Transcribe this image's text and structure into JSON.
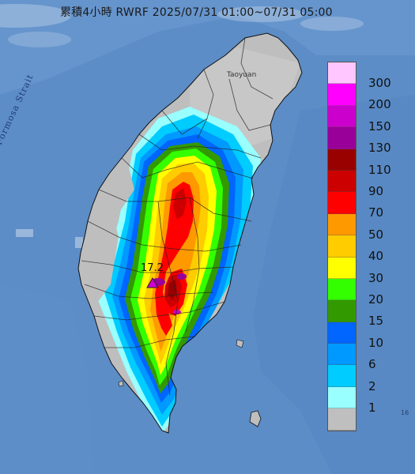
{
  "title": "累積4小時 RWRF 2025/07/31 01:00~07/31 05:00",
  "labels": {
    "strait": "Formosa Strait",
    "city": "Taoyuan",
    "station": "17.2",
    "corner_fragment": "16"
  },
  "legend": [
    {
      "label": "300",
      "color": "#ffc6ff"
    },
    {
      "label": "200",
      "color": "#ff00ff"
    },
    {
      "label": "150",
      "color": "#cc00cc"
    },
    {
      "label": "130",
      "color": "#990099"
    },
    {
      "label": "110",
      "color": "#990000"
    },
    {
      "label": "90",
      "color": "#cc0000"
    },
    {
      "label": "70",
      "color": "#ff0000"
    },
    {
      "label": "50",
      "color": "#ff9900"
    },
    {
      "label": "40",
      "color": "#ffcc00"
    },
    {
      "label": "30",
      "color": "#ffff00"
    },
    {
      "label": "20",
      "color": "#33ff00"
    },
    {
      "label": "15",
      "color": "#339900"
    },
    {
      "label": "10",
      "color": "#0066ff"
    },
    {
      "label": "6",
      "color": "#0099ff"
    },
    {
      "label": "2",
      "color": "#00ccff"
    },
    {
      "label": "1",
      "color": "#99ffff"
    },
    {
      "label": "",
      "color": "#bfbfbf"
    }
  ]
}
